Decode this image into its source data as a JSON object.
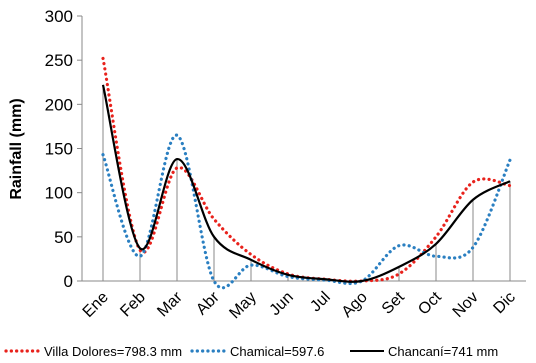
{
  "chart_data": {
    "type": "line",
    "categories": [
      "Ene",
      "Feb",
      "Mar",
      "Abr",
      "May",
      "Jun",
      "Jul",
      "Ago",
      "Set",
      "Oct",
      "Nov",
      "Dic"
    ],
    "ylabel": "Rainfall (mm)",
    "xlabel": "",
    "title": "",
    "ylim": [
      0,
      300
    ],
    "yticks": [
      0,
      50,
      100,
      150,
      200,
      250,
      300
    ],
    "grid": false,
    "legend_position": "bottom",
    "series": [
      {
        "name": "Villa Dolores=798.3 mm",
        "values": [
          252,
          35,
          128,
          70,
          30,
          8,
          2,
          0,
          8,
          50,
          112,
          108
        ],
        "color": "#e8221c",
        "style": "dotted"
      },
      {
        "name": "Chamical=597.6",
        "values": [
          143,
          28,
          165,
          0,
          18,
          5,
          1,
          0,
          40,
          28,
          38,
          137
        ],
        "color": "#2a7fc1",
        "style": "dotted"
      },
      {
        "name": "Chancaní=741 mm",
        "values": [
          222,
          37,
          138,
          50,
          24,
          7,
          2,
          0,
          16,
          42,
          92,
          113
        ],
        "color": "#000000",
        "style": "solid"
      }
    ]
  }
}
